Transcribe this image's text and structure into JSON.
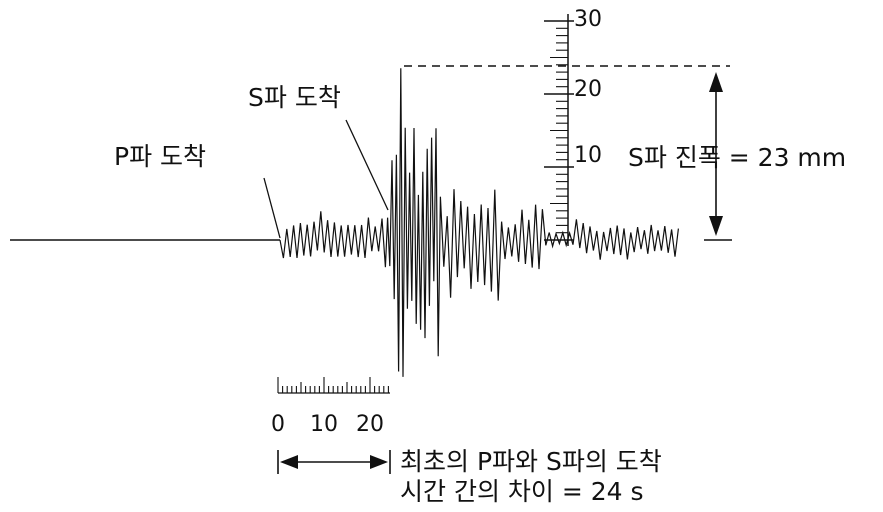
{
  "labels": {
    "p_arrival": "P파 도착",
    "s_arrival": "S파 도착",
    "s_amplitude": "S파 진폭 = 23 mm",
    "interval_line1": "최초의 P파와 S파의 도착",
    "interval_line2": "시간 간의 차이 = 24 s"
  },
  "amplitude_scale": {
    "tick_labels": [
      "10",
      "20",
      "30"
    ]
  },
  "time_scale": {
    "tick_labels": [
      "0",
      "10",
      "20"
    ]
  },
  "values": {
    "s_wave_amplitude_mm": 23,
    "sp_interval_s": 24
  }
}
